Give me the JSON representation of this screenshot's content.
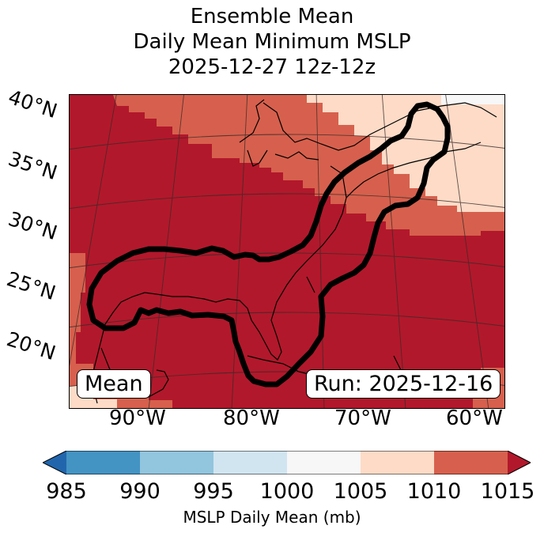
{
  "title": {
    "line1": "Ensemble Mean",
    "line2": "Daily Mean Minimum MSLP",
    "line3": "2025-12-27 12z-12z"
  },
  "latitude_labels": [
    "40°N",
    "35°N",
    "30°N",
    "25°N",
    "20°N"
  ],
  "longitude_labels": [
    "90°W",
    "80°W",
    "70°W",
    "60°W"
  ],
  "badges": {
    "mean": "Mean",
    "run": "Run: 2025-12-16"
  },
  "colorbar": {
    "label": "MSLP Daily Mean (mb)",
    "ticks": [
      "985",
      "990",
      "995",
      "1000",
      "1005",
      "1010",
      "1015"
    ],
    "colors": [
      "#4393c3",
      "#92c5de",
      "#d1e5f0",
      "#f7f7f7",
      "#fddbc7",
      "#d6604d",
      "#b2182b"
    ],
    "under_color": "#2166ac",
    "over_color": "#b2182b"
  },
  "map_colors": {
    "range_1015_plus": "#b2182b",
    "range_1010_1015": "#d6604d",
    "range_1005_1010": "#fddbc7",
    "range_1000_1005": "#f7f7f7"
  }
}
